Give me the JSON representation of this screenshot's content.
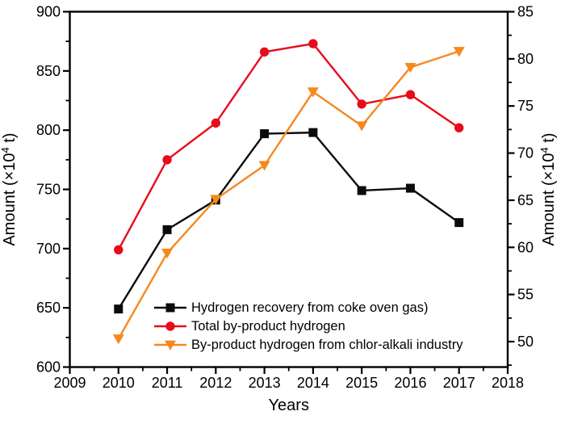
{
  "colors": {
    "background": "#ffffff",
    "axis": "#000000",
    "series_black": "#0b0b0b",
    "series_red": "#e80b1a",
    "series_orange": "#f6881f"
  },
  "chart_data": {
    "type": "line",
    "title": "",
    "xlabel": "Years",
    "ylabel_left": "Amount (×10⁴ t)",
    "ylabel_right": "Amount (×10⁴ t)",
    "grid": false,
    "legend_position": "inside-bottom-left",
    "xlim": [
      2009,
      2018
    ],
    "ylim_left": [
      600,
      900
    ],
    "ylim_right": [
      47.3,
      85
    ],
    "x_tick_labels": [
      "2009",
      "2010",
      "2011",
      "2012",
      "2013",
      "2014",
      "2015",
      "2016",
      "2017",
      "2018"
    ],
    "y_tick_labels_left": [
      "600",
      "650",
      "700",
      "750",
      "800",
      "850",
      "900"
    ],
    "y_tick_labels_right": [
      "50",
      "55",
      "60",
      "65",
      "70",
      "75",
      "80",
      "85"
    ],
    "x_minor_step": 0.5,
    "y_minor_step_left": 25,
    "y_minor_step_right": 2.5,
    "x": [
      2010,
      2011,
      2012,
      2013,
      2014,
      2015,
      2016,
      2017
    ],
    "series": [
      {
        "name": "Hydrogen recovery from coke oven gas)",
        "axis": "left",
        "marker": "square",
        "color": "#0b0b0b",
        "values": [
          649,
          716,
          741,
          797,
          798,
          749,
          751,
          722
        ]
      },
      {
        "name": "Total by-product hydrogen",
        "axis": "left",
        "marker": "circle",
        "color": "#e80b1a",
        "values": [
          699,
          775,
          806,
          866,
          873,
          822,
          830,
          802
        ]
      },
      {
        "name": "By-product hydrogen from chlor-alkali industry",
        "axis": "right",
        "marker": "triangle-down",
        "color": "#f6881f",
        "values": [
          50.3,
          59.4,
          65.1,
          68.7,
          76.5,
          72.9,
          79.1,
          80.8
        ]
      }
    ]
  }
}
